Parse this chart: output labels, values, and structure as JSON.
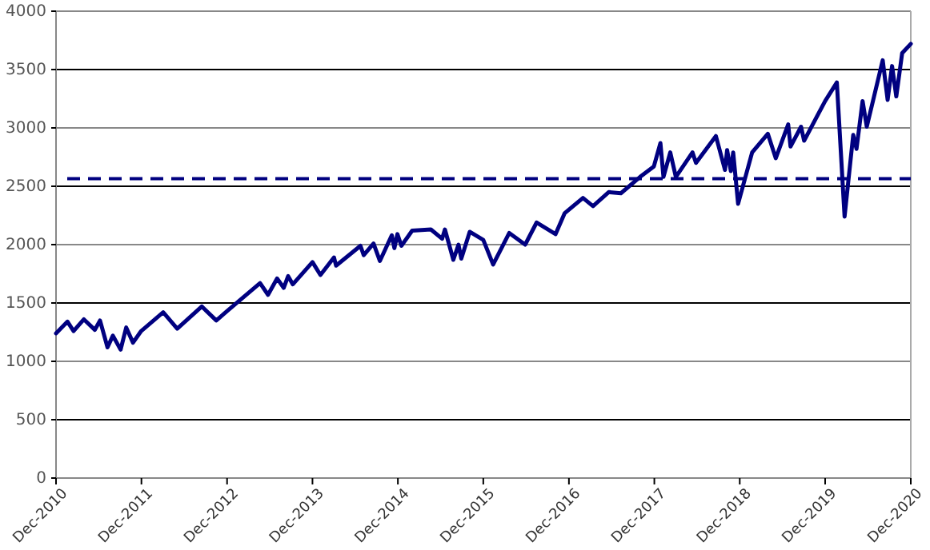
{
  "chart_data": {
    "type": "line",
    "x": [
      "2010-12-31",
      "2011-02-18",
      "2011-03-16",
      "2011-04-29",
      "2011-06-15",
      "2011-07-07",
      "2011-08-08",
      "2011-08-31",
      "2011-10-03",
      "2011-10-27",
      "2011-11-25",
      "2011-12-30",
      "2012-04-02",
      "2012-06-01",
      "2012-09-14",
      "2012-11-15",
      "2012-12-31",
      "2013-05-21",
      "2013-06-24",
      "2013-08-02",
      "2013-08-30",
      "2013-09-18",
      "2013-10-08",
      "2013-12-31",
      "2014-02-03",
      "2014-04-02",
      "2014-04-11",
      "2014-07-24",
      "2014-08-07",
      "2014-09-18",
      "2014-10-15",
      "2014-12-05",
      "2014-12-16",
      "2014-12-29",
      "2015-01-15",
      "2015-03-02",
      "2015-05-21",
      "2015-07-08",
      "2015-07-20",
      "2015-08-25",
      "2015-09-16",
      "2015-09-28",
      "2015-11-03",
      "2015-12-31",
      "2016-02-11",
      "2016-04-20",
      "2016-06-27",
      "2016-08-15",
      "2016-11-04",
      "2016-12-13",
      "2017-03-01",
      "2017-04-13",
      "2017-06-19",
      "2017-08-10",
      "2017-10-31",
      "2017-12-29",
      "2018-01-26",
      "2018-02-08",
      "2018-03-09",
      "2018-04-02",
      "2018-06-12",
      "2018-06-27",
      "2018-09-20",
      "2018-10-29",
      "2018-11-07",
      "2018-11-23",
      "2018-12-03",
      "2018-12-24",
      "2019-02-22",
      "2019-04-30",
      "2019-06-03",
      "2019-07-26",
      "2019-08-05",
      "2019-09-19",
      "2019-10-02",
      "2019-12-31",
      "2020-02-19",
      "2020-03-23",
      "2020-04-29",
      "2020-05-13",
      "2020-06-08",
      "2020-06-26",
      "2020-09-02",
      "2020-09-23",
      "2020-10-12",
      "2020-10-30",
      "2020-11-24",
      "2020-12-31"
    ],
    "series": [
      {
        "color": "#000080",
        "values": [
          1240,
          1340,
          1260,
          1360,
          1270,
          1350,
          1120,
          1220,
          1100,
          1290,
          1160,
          1260,
          1420,
          1280,
          1470,
          1350,
          1430,
          1670,
          1570,
          1710,
          1630,
          1730,
          1660,
          1850,
          1740,
          1890,
          1820,
          1990,
          1910,
          2010,
          1860,
          2080,
          1970,
          2090,
          1990,
          2120,
          2130,
          2050,
          2130,
          1870,
          2000,
          1880,
          2110,
          2040,
          1830,
          2100,
          2000,
          2190,
          2090,
          2270,
          2400,
          2330,
          2450,
          2440,
          2580,
          2670,
          2870,
          2580,
          2790,
          2580,
          2790,
          2700,
          2930,
          2640,
          2810,
          2630,
          2790,
          2350,
          2790,
          2950,
          2740,
          3030,
          2840,
          3010,
          2890,
          3230,
          3390,
          2240,
          2940,
          2820,
          3230,
          3010,
          3580,
          3240,
          3530,
          3270,
          3640,
          3720
        ]
      }
    ],
    "xlim": [
      "2010-12-31",
      "2020-12-31"
    ],
    "xticks": [
      {
        "value": "2010-12-31",
        "label": "Dec-2010"
      },
      {
        "value": "2011-12-31",
        "label": "Dec-2011"
      },
      {
        "value": "2012-12-31",
        "label": "Dec-2012"
      },
      {
        "value": "2013-12-31",
        "label": "Dec-2013"
      },
      {
        "value": "2014-12-31",
        "label": "Dec-2014"
      },
      {
        "value": "2015-12-31",
        "label": "Dec-2015"
      },
      {
        "value": "2016-12-31",
        "label": "Dec-2016"
      },
      {
        "value": "2017-12-31",
        "label": "Dec-2017"
      },
      {
        "value": "2018-12-31",
        "label": "Dec-2018"
      },
      {
        "value": "2019-12-31",
        "label": "Dec-2019"
      },
      {
        "value": "2020-12-31",
        "label": "Dec-2020"
      }
    ],
    "ylim": [
      0,
      4000
    ],
    "yticks": [
      0,
      500,
      1000,
      1500,
      2000,
      2500,
      3000,
      3500,
      4000
    ],
    "grid": "y",
    "marker": "none",
    "line_style": "solid",
    "ref_lines": [
      {
        "axis": "y",
        "value": 2565,
        "color": "#000080",
        "line_style": "dashed"
      }
    ]
  }
}
